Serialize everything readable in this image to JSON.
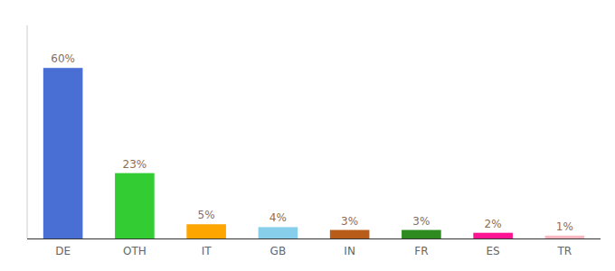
{
  "chart_data": {
    "type": "bar",
    "categories": [
      "DE",
      "OTH",
      "IT",
      "GB",
      "IN",
      "FR",
      "ES",
      "TR"
    ],
    "values": [
      60,
      23,
      5,
      4,
      3,
      3,
      2,
      1
    ],
    "value_labels": [
      "60%",
      "23%",
      "5%",
      "4%",
      "3%",
      "3%",
      "2%",
      "1%"
    ],
    "colors": [
      "#4A6FD4",
      "#33CC33",
      "#FFA500",
      "#87CEEB",
      "#B85C1A",
      "#2E8B20",
      "#FF1493",
      "#FFB6C1"
    ],
    "ylim": [
      0,
      75
    ],
    "grid": false,
    "data_labels": true,
    "tick_labels": "x"
  }
}
